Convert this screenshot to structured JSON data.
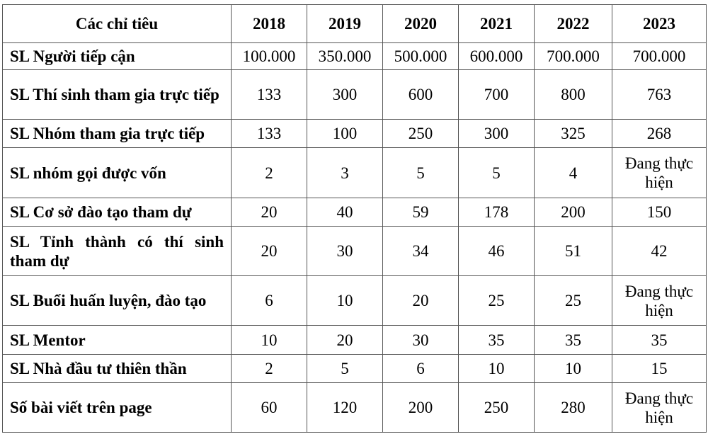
{
  "table": {
    "columns": [
      "Các chỉ tiêu",
      "2018",
      "2019",
      "2020",
      "2021",
      "2022",
      "2023"
    ],
    "rows": [
      {
        "label": "SL Người tiếp cận",
        "values": [
          "100.000",
          "350.000",
          "500.000",
          "600.000",
          "700.000",
          "700.000"
        ]
      },
      {
        "label": "SL Thí sinh tham gia trực tiếp",
        "values": [
          "133",
          "300",
          "600",
          "700",
          "800",
          "763"
        ]
      },
      {
        "label": "SL Nhóm tham gia trực tiếp",
        "values": [
          "133",
          "100",
          "250",
          "300",
          "325",
          "268"
        ]
      },
      {
        "label": "SL nhóm gọi được vốn",
        "values": [
          "2",
          "3",
          "5",
          "5",
          "4",
          "Đang thực hiện"
        ]
      },
      {
        "label": "SL Cơ sở đào tạo tham dự",
        "values": [
          "20",
          "40",
          "59",
          "178",
          "200",
          "150"
        ]
      },
      {
        "label": "SL Tỉnh thành có thí sinh tham dự",
        "values": [
          "20",
          "30",
          "34",
          "46",
          "51",
          "42"
        ]
      },
      {
        "label": "SL Buổi huấn luyện, đào tạo",
        "values": [
          "6",
          "10",
          "20",
          "25",
          "25",
          "Đang thực hiện"
        ]
      },
      {
        "label": "SL Mentor",
        "values": [
          "10",
          "20",
          "30",
          "35",
          "35",
          "35"
        ]
      },
      {
        "label": "SL Nhà đầu tư thiên thần",
        "values": [
          "2",
          "5",
          "6",
          "10",
          "10",
          "15"
        ]
      },
      {
        "label": "Số bài viết trên page",
        "values": [
          "60",
          "120",
          "200",
          "250",
          "280",
          "Đang thực hiện"
        ]
      }
    ]
  }
}
